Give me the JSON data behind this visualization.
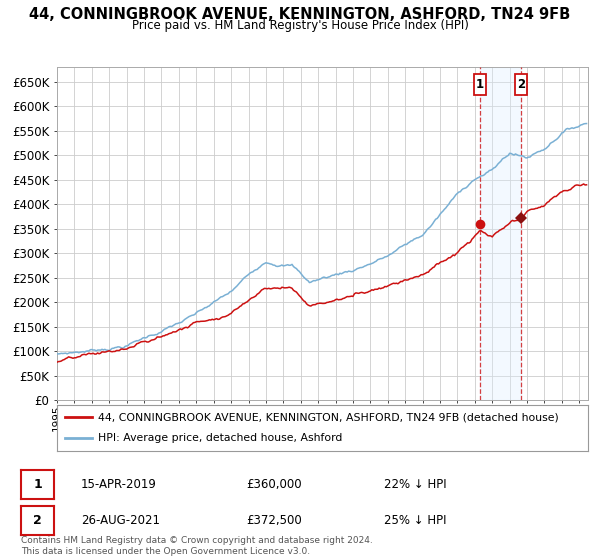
{
  "title": "44, CONNINGBROOK AVENUE, KENNINGTON, ASHFORD, TN24 9FB",
  "subtitle": "Price paid vs. HM Land Registry's House Price Index (HPI)",
  "ylabel_ticks": [
    "£0",
    "£50K",
    "£100K",
    "£150K",
    "£200K",
    "£250K",
    "£300K",
    "£350K",
    "£400K",
    "£450K",
    "£500K",
    "£550K",
    "£600K",
    "£650K"
  ],
  "ytick_vals": [
    0,
    50000,
    100000,
    150000,
    200000,
    250000,
    300000,
    350000,
    400000,
    450000,
    500000,
    550000,
    600000,
    650000
  ],
  "ylim": [
    0,
    680000
  ],
  "xlim_start": 1995.0,
  "xlim_end": 2025.5,
  "hpi_color": "#7ab0d4",
  "price_color": "#cc1111",
  "sale1_year": 2019.29,
  "sale1_price": 360000,
  "sale2_year": 2021.65,
  "sale2_price": 372500,
  "shade_color": "#ddeeff",
  "legend_label1": "44, CONNINGBROOK AVENUE, KENNINGTON, ASHFORD, TN24 9FB (detached house)",
  "legend_label2": "HPI: Average price, detached house, Ashford",
  "annotation1_date": "15-APR-2019",
  "annotation1_price": "£360,000",
  "annotation1_hpi": "22% ↓ HPI",
  "annotation2_date": "26-AUG-2021",
  "annotation2_price": "£372,500",
  "annotation2_hpi": "25% ↓ HPI",
  "footnote": "Contains HM Land Registry data © Crown copyright and database right 2024.\nThis data is licensed under the Open Government Licence v3.0.",
  "background_color": "#ffffff",
  "plot_bg_color": "#ffffff",
  "grid_color": "#cccccc"
}
